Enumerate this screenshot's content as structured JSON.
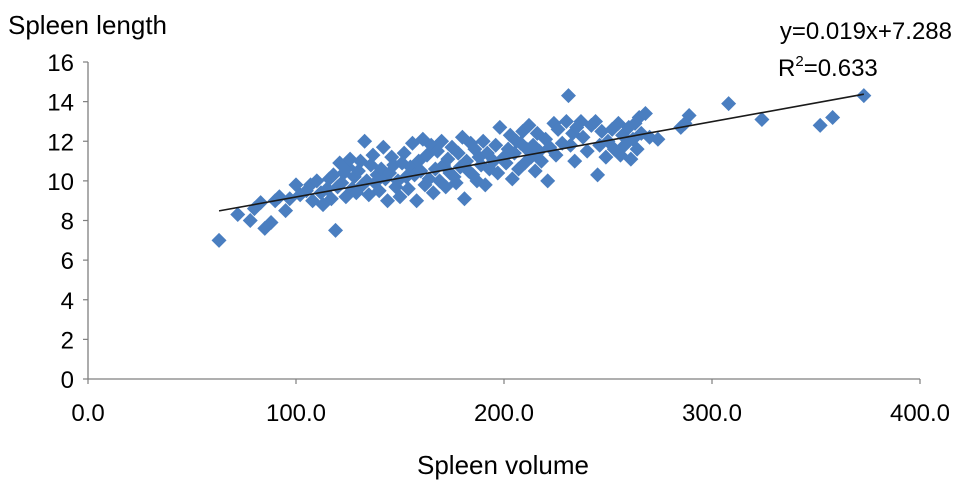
{
  "chart_data": {
    "type": "scatter",
    "ylabel": "Spleen length",
    "xlabel": "Spleen volume",
    "xlim": [
      0,
      400
    ],
    "ylim": [
      0,
      16
    ],
    "x_ticks": [
      "0.0",
      "100.0",
      "200.0",
      "300.0",
      "400.0"
    ],
    "y_ticks": [
      "0",
      "2",
      "4",
      "6",
      "8",
      "10",
      "12",
      "14",
      "16"
    ],
    "grid": false,
    "marker": "diamond",
    "marker_color": "#4a7ec0",
    "trendline": {
      "slope": 0.019,
      "intercept": 7.288,
      "x_range": [
        63,
        373
      ],
      "color": "#1a1a1a"
    },
    "annotations": {
      "equation": "y=0.019x+7.288",
      "r2_prefix": "R",
      "r2_sup": "2",
      "r2_value": "=0.633"
    },
    "points": [
      [
        63,
        7.0
      ],
      [
        72,
        8.3
      ],
      [
        78,
        8.0
      ],
      [
        80,
        8.6
      ],
      [
        83,
        8.9
      ],
      [
        85,
        7.6
      ],
      [
        88,
        7.9
      ],
      [
        90,
        9.0
      ],
      [
        92,
        9.2
      ],
      [
        95,
        8.5
      ],
      [
        97,
        9.1
      ],
      [
        100,
        9.8
      ],
      [
        102,
        9.3
      ],
      [
        105,
        9.5
      ],
      [
        107,
        9.8
      ],
      [
        108,
        9.0
      ],
      [
        110,
        10.0
      ],
      [
        112,
        9.4
      ],
      [
        113,
        8.8
      ],
      [
        115,
        9.6
      ],
      [
        116,
        10.1
      ],
      [
        117,
        9.1
      ],
      [
        118,
        10.3
      ],
      [
        119,
        7.5
      ],
      [
        120,
        9.7
      ],
      [
        121,
        10.9
      ],
      [
        122,
        9.9
      ],
      [
        123,
        10.4
      ],
      [
        124,
        9.2
      ],
      [
        125,
        10.7
      ],
      [
        126,
        11.1
      ],
      [
        127,
        9.6
      ],
      [
        128,
        10.2
      ],
      [
        129,
        9.4
      ],
      [
        130,
        10.5
      ],
      [
        131,
        11.0
      ],
      [
        132,
        9.8
      ],
      [
        133,
        12.0
      ],
      [
        134,
        10.0
      ],
      [
        135,
        9.3
      ],
      [
        136,
        10.8
      ],
      [
        137,
        11.3
      ],
      [
        138,
        9.9
      ],
      [
        139,
        10.3
      ],
      [
        140,
        9.5
      ],
      [
        141,
        10.6
      ],
      [
        142,
        11.7
      ],
      [
        143,
        10.1
      ],
      [
        144,
        9.0
      ],
      [
        145,
        10.4
      ],
      [
        146,
        11.2
      ],
      [
        147,
        10.8
      ],
      [
        148,
        9.7
      ],
      [
        149,
        10.0
      ],
      [
        150,
        9.2
      ],
      [
        151,
        10.9
      ],
      [
        152,
        11.4
      ],
      [
        153,
        10.2
      ],
      [
        154,
        9.6
      ],
      [
        155,
        10.7
      ],
      [
        156,
        11.9
      ],
      [
        157,
        10.3
      ],
      [
        158,
        9.0
      ],
      [
        159,
        11.0
      ],
      [
        160,
        10.5
      ],
      [
        161,
        12.1
      ],
      [
        162,
        9.8
      ],
      [
        163,
        11.3
      ],
      [
        164,
        10.1
      ],
      [
        165,
        11.8
      ],
      [
        166,
        9.4
      ],
      [
        167,
        10.6
      ],
      [
        168,
        11.5
      ],
      [
        169,
        10.0
      ],
      [
        170,
        12.0
      ],
      [
        171,
        10.8
      ],
      [
        172,
        9.7
      ],
      [
        173,
        11.1
      ],
      [
        174,
        10.4
      ],
      [
        175,
        11.7
      ],
      [
        176,
        10.2
      ],
      [
        177,
        9.9
      ],
      [
        178,
        11.4
      ],
      [
        179,
        10.7
      ],
      [
        180,
        12.2
      ],
      [
        181,
        9.1
      ],
      [
        182,
        11.0
      ],
      [
        183,
        10.5
      ],
      [
        184,
        11.9
      ],
      [
        185,
        10.3
      ],
      [
        186,
        11.6
      ],
      [
        187,
        10.0
      ],
      [
        188,
        11.2
      ],
      [
        189,
        10.8
      ],
      [
        190,
        12.0
      ],
      [
        191,
        9.8
      ],
      [
        192,
        11.4
      ],
      [
        193,
        10.6
      ],
      [
        195,
        11.0
      ],
      [
        196,
        11.8
      ],
      [
        197,
        10.4
      ],
      [
        198,
        12.7
      ],
      [
        200,
        11.2
      ],
      [
        201,
        10.9
      ],
      [
        202,
        11.6
      ],
      [
        203,
        12.3
      ],
      [
        204,
        10.1
      ],
      [
        205,
        11.4
      ],
      [
        206,
        12.0
      ],
      [
        207,
        10.6
      ],
      [
        208,
        11.9
      ],
      [
        209,
        12.5
      ],
      [
        210,
        10.9
      ],
      [
        211,
        11.6
      ],
      [
        212,
        12.8
      ],
      [
        213,
        11.2
      ],
      [
        214,
        11.8
      ],
      [
        215,
        10.5
      ],
      [
        216,
        12.4
      ],
      [
        217,
        11.5
      ],
      [
        218,
        11.0
      ],
      [
        220,
        12.1
      ],
      [
        221,
        10.0
      ],
      [
        222,
        11.7
      ],
      [
        224,
        12.9
      ],
      [
        225,
        11.3
      ],
      [
        226,
        12.6
      ],
      [
        228,
        11.9
      ],
      [
        230,
        13.0
      ],
      [
        231,
        14.3
      ],
      [
        232,
        11.8
      ],
      [
        233,
        12.4
      ],
      [
        234,
        11.0
      ],
      [
        235,
        12.7
      ],
      [
        237,
        13.0
      ],
      [
        238,
        12.2
      ],
      [
        240,
        11.5
      ],
      [
        242,
        12.8
      ],
      [
        244,
        13.0
      ],
      [
        245,
        10.3
      ],
      [
        246,
        11.8
      ],
      [
        247,
        12.5
      ],
      [
        249,
        11.2
      ],
      [
        250,
        12.0
      ],
      [
        252,
        12.6
      ],
      [
        253,
        11.6
      ],
      [
        255,
        12.9
      ],
      [
        256,
        11.3
      ],
      [
        257,
        12.3
      ],
      [
        258,
        11.8
      ],
      [
        260,
        12.7
      ],
      [
        261,
        11.1
      ],
      [
        262,
        12.1
      ],
      [
        263,
        12.9
      ],
      [
        264,
        11.6
      ],
      [
        265,
        13.2
      ],
      [
        266,
        12.4
      ],
      [
        268,
        13.4
      ],
      [
        270,
        12.2
      ],
      [
        274,
        12.1
      ],
      [
        285,
        12.7
      ],
      [
        287,
        12.9
      ],
      [
        289,
        13.3
      ],
      [
        308,
        13.9
      ],
      [
        324,
        13.1
      ],
      [
        352,
        12.8
      ],
      [
        358,
        13.2
      ],
      [
        373,
        14.3
      ]
    ]
  }
}
